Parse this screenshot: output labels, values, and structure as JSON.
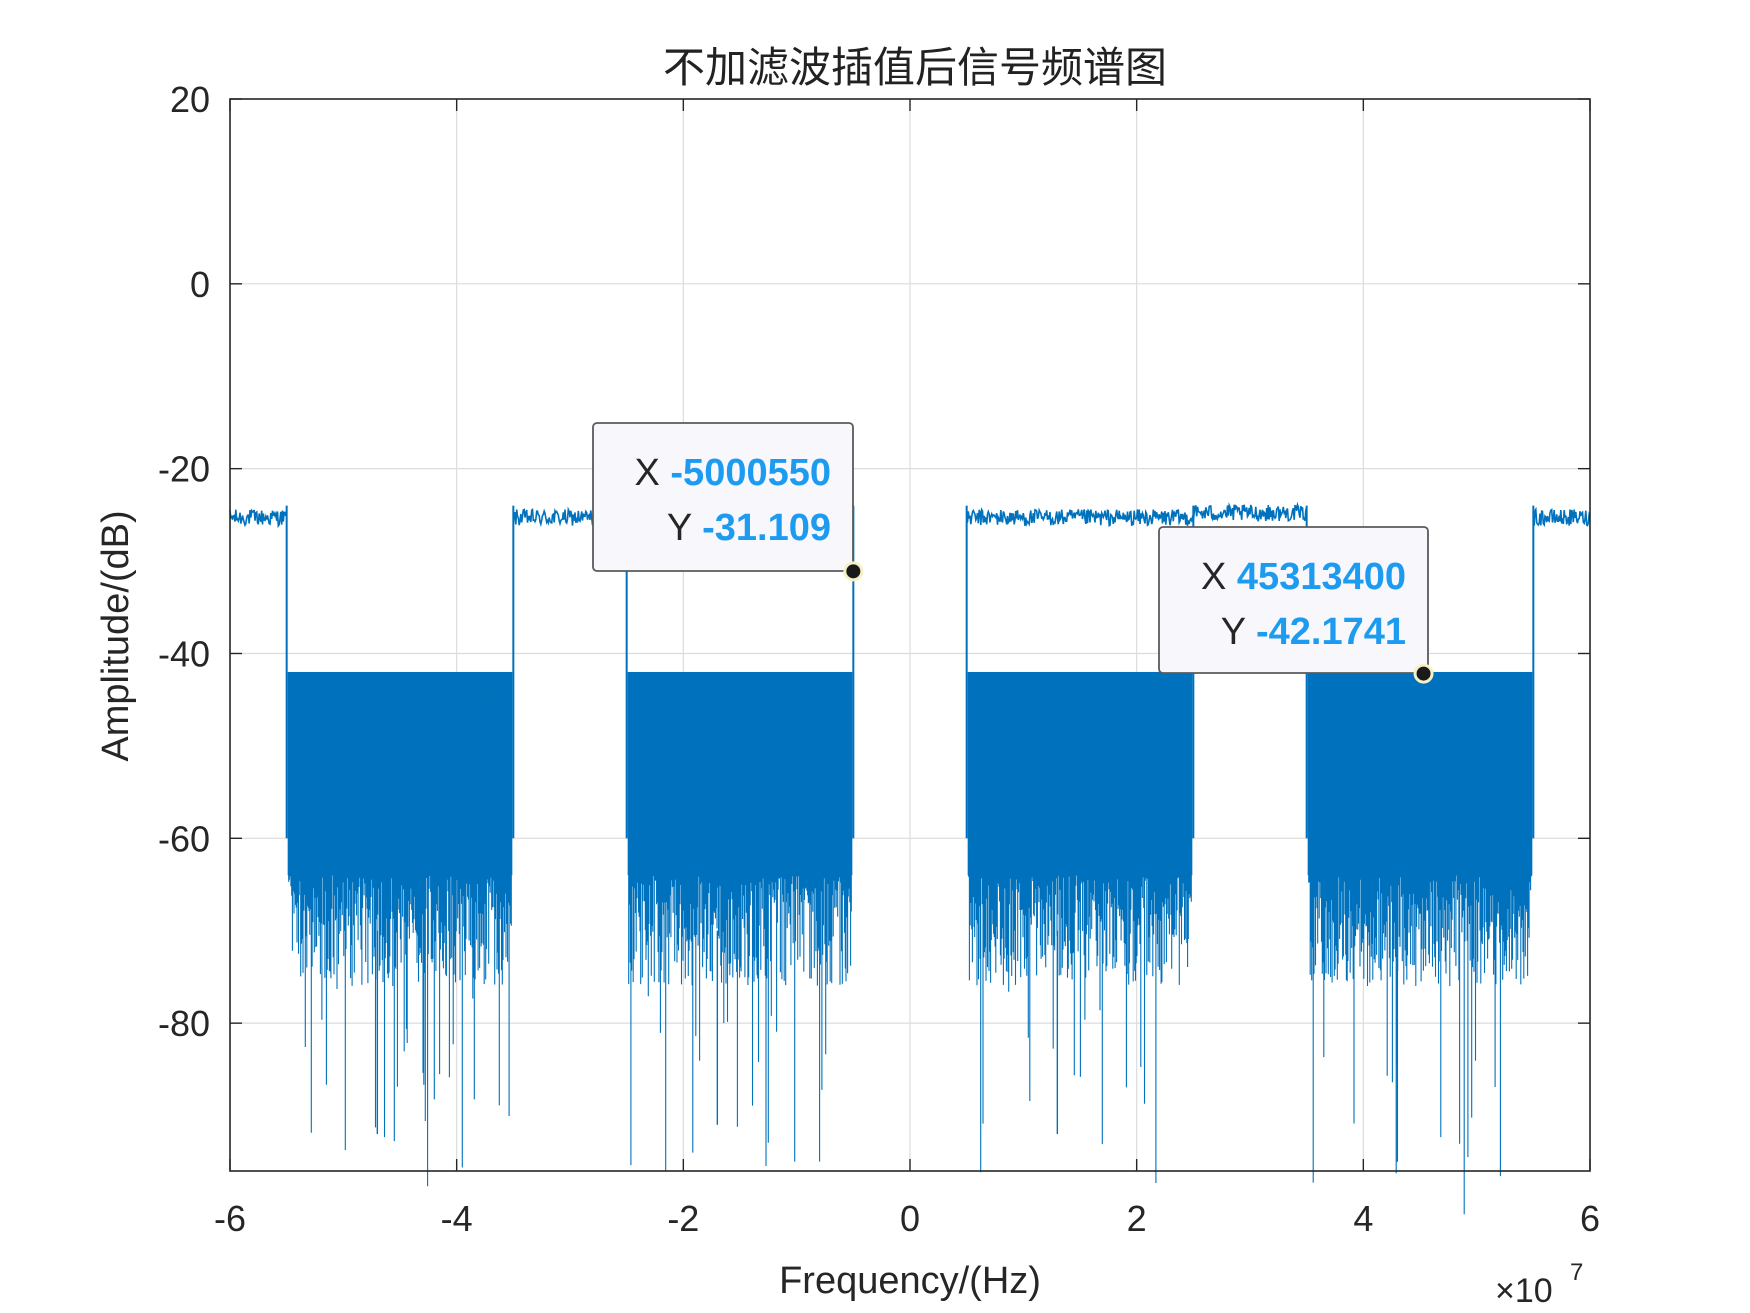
{
  "chart_data": {
    "type": "line",
    "title": "不加滤波插值后信号频谱图",
    "xlabel": "Frequency/(Hz)",
    "ylabel": "Amplitude/(dB)",
    "x_exponent_label": "×10",
    "x_exponent_power": "7",
    "xlim": [
      -6,
      6
    ],
    "ylim": [
      -96,
      20
    ],
    "x_ticks": [
      -6,
      -4,
      -2,
      0,
      2,
      4,
      6
    ],
    "x_tick_labels": [
      "-6",
      "-4",
      "-2",
      "0",
      "2",
      "4",
      "6"
    ],
    "y_ticks": [
      -80,
      -60,
      -40,
      -20,
      0,
      20
    ],
    "y_tick_labels": [
      "-80",
      "-60",
      "-40",
      "-20",
      "0",
      "20"
    ],
    "grid": true,
    "line_color": "#0072BD",
    "passbands": [
      {
        "from": -6.0,
        "to": -5.5,
        "level_db": -25.3
      },
      {
        "from": -3.5,
        "to": -0.5,
        "level_db": -25.3
      },
      {
        "from": 0.5,
        "to": 2.5,
        "level_db": -25.3
      },
      {
        "from": 2.5,
        "to": 3.5,
        "level_db": -24.8
      },
      {
        "from": 5.5,
        "to": 6.0,
        "level_db": -25.3
      }
    ],
    "stopbands": [
      {
        "from": -5.5,
        "to": -3.5,
        "top_db": -41,
        "bottom_db": -70,
        "floor_db": -92
      },
      {
        "from": -2.5,
        "to": -0.5,
        "top_db": -41,
        "bottom_db": -70,
        "floor_db": -91
      },
      {
        "from": 0.5,
        "to": 2.5,
        "top_db": -41,
        "bottom_db": -70,
        "floor_db": -92
      },
      {
        "from": 3.5,
        "to": 5.5,
        "top_db": -41,
        "bottom_db": -70,
        "floor_db": -95
      }
    ],
    "datatips": [
      {
        "x_label": "X",
        "x_value": "-5000550",
        "y_label": "Y",
        "y_value": "-31.109",
        "x": -0.500055,
        "y": -31.109
      },
      {
        "x_label": "X",
        "x_value": "45313400",
        "y_label": "Y",
        "y_value": "-42.1741",
        "x": 4.53134,
        "y": -42.1741
      }
    ],
    "datatip_value_color": "#1D9BF0"
  }
}
